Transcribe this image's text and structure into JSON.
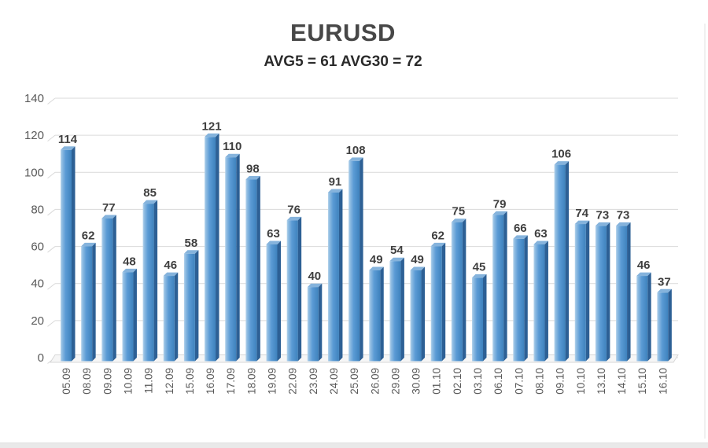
{
  "title": "EURUSD",
  "subtitle": "AVG5 = 61 AVG30 = 72",
  "chart_data": {
    "type": "bar",
    "style": "3d-column",
    "title": "EURUSD",
    "subtitle": "AVG5 = 61 AVG30 = 72",
    "categories": [
      "05.09",
      "08.09",
      "09.09",
      "10.09",
      "11.09",
      "12.09",
      "15.09",
      "16.09",
      "17.09",
      "18.09",
      "19.09",
      "22.09",
      "23.09",
      "24.09",
      "25.09",
      "26.09",
      "29.09",
      "30.09",
      "01.10",
      "02.10",
      "03.10",
      "06.10",
      "07.10",
      "08.10",
      "09.10",
      "10.10",
      "13.10",
      "14.10",
      "15.10",
      "16.10"
    ],
    "values": [
      114,
      62,
      77,
      48,
      85,
      46,
      58,
      121,
      110,
      98,
      63,
      76,
      40,
      91,
      108,
      49,
      54,
      49,
      62,
      75,
      45,
      79,
      66,
      63,
      106,
      74,
      73,
      73,
      46,
      37
    ],
    "xlabel": "",
    "ylabel": "",
    "ylim": [
      0,
      140
    ],
    "ytick_step": 20,
    "yticks": [
      0,
      20,
      40,
      60,
      80,
      100,
      120,
      140
    ],
    "grid": true,
    "legend": "none",
    "colors": {
      "bar_main": "#5b9bd5",
      "bar_highlight": "#b6d4ec",
      "bar_shadow_side": "#2d6095",
      "bar_top": "#85b3dc",
      "gridline": "#d9d9d9",
      "axis_tick_text": "#595959",
      "value_label_text": "#3f3f3f",
      "title_text": "#474747",
      "subtitle_text": "#2b2b2b",
      "floor_fill": "#f6f6f6"
    }
  }
}
